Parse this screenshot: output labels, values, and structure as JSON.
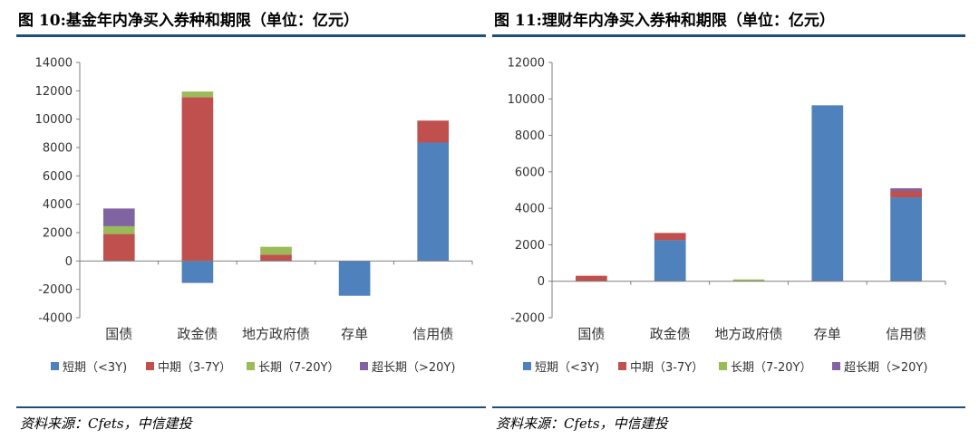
{
  "charts": [
    {
      "title": "图 10:基金年内净买入券种和期限（单位：亿元）",
      "source": "资料来源：Cfets，中信建投",
      "chart_data": {
        "type": "bar",
        "stacked": true,
        "categories": [
          "国债",
          "政金债",
          "地方政府债",
          "存单",
          "信用债"
        ],
        "series": [
          {
            "name": "短期（<3Y)",
            "color": "#4f81bd",
            "values": [
              0,
              -1550,
              0,
              -2450,
              8350
            ]
          },
          {
            "name": "中期（3-7Y）",
            "color": "#c0504d",
            "values": [
              1900,
              11550,
              450,
              0,
              1550
            ]
          },
          {
            "name": "长期（7-20Y）",
            "color": "#9bbb59",
            "values": [
              550,
              400,
              550,
              0,
              0
            ]
          },
          {
            "name": "超长期（>20Y)",
            "color": "#8064a2",
            "values": [
              1250,
              0,
              0,
              0,
              0
            ]
          }
        ],
        "ylim": [
          -4000,
          14000
        ],
        "yticks": [
          "14000",
          "12000",
          "10000",
          "8000",
          "6000",
          "4000",
          "2000",
          "0",
          "-2000",
          "-4000"
        ],
        "legend": "bottom",
        "grid": false
      }
    },
    {
      "title": "图 11:理财年内净买入券种和期限（单位：亿元）",
      "source": "资料来源：Cfets，中信建投",
      "chart_data": {
        "type": "bar",
        "stacked": true,
        "categories": [
          "国债",
          "政金债",
          "地方政府债",
          "存单",
          "信用债"
        ],
        "series": [
          {
            "name": "短期（<3Y)",
            "color": "#4f81bd",
            "values": [
              0,
              2250,
              0,
              9650,
              4600
            ]
          },
          {
            "name": "中期（3-7Y）",
            "color": "#c0504d",
            "values": [
              300,
              400,
              0,
              0,
              350
            ]
          },
          {
            "name": "长期（7-20Y）",
            "color": "#9bbb59",
            "values": [
              0,
              0,
              100,
              0,
              0
            ]
          },
          {
            "name": "超长期（>20Y)",
            "color": "#8064a2",
            "values": [
              0,
              0,
              0,
              0,
              150
            ]
          }
        ],
        "ylim": [
          -2000,
          12000
        ],
        "yticks": [
          "12000",
          "10000",
          "8000",
          "6000",
          "4000",
          "2000",
          "0",
          "-2000"
        ],
        "legend": "bottom",
        "grid": false
      }
    }
  ]
}
